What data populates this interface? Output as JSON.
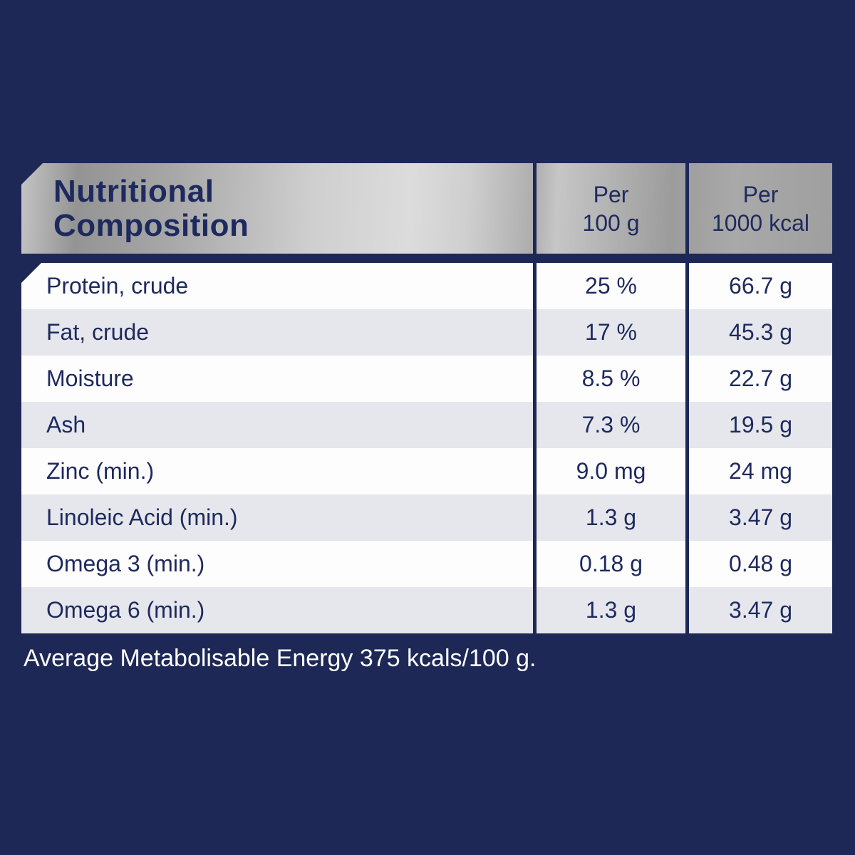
{
  "colors": {
    "background": "#1d2857",
    "text_navy": "#1e2a5e",
    "row_white": "#fdfdfe",
    "row_alt": "#e6e7ec",
    "header_silver": "#c0c0c0"
  },
  "table": {
    "title_line1": "Nutritional",
    "title_line2": "Composition",
    "columns": [
      {
        "line1": "Per",
        "line2": "100 g"
      },
      {
        "line1": "Per",
        "line2": "1000 kcal"
      }
    ],
    "rows": [
      {
        "label": "Protein, crude",
        "per_100g": "25 %",
        "per_1000kcal": "66.7 g"
      },
      {
        "label": "Fat, crude",
        "per_100g": "17 %",
        "per_1000kcal": "45.3 g"
      },
      {
        "label": "Moisture",
        "per_100g": "8.5 %",
        "per_1000kcal": "22.7 g"
      },
      {
        "label": "Ash",
        "per_100g": "7.3 %",
        "per_1000kcal": "19.5 g"
      },
      {
        "label": "Zinc (min.)",
        "per_100g": "9.0 mg",
        "per_1000kcal": "24 mg"
      },
      {
        "label": "Linoleic Acid (min.)",
        "per_100g": "1.3 g",
        "per_1000kcal": "3.47 g"
      },
      {
        "label": "Omega 3 (min.)",
        "per_100g": "0.18 g",
        "per_1000kcal": "0.48 g"
      },
      {
        "label": "Omega 6 (min.)",
        "per_100g": "1.3 g",
        "per_1000kcal": "3.47 g"
      }
    ]
  },
  "footnote": "Average Metabolisable Energy 375 kcals/100 g."
}
